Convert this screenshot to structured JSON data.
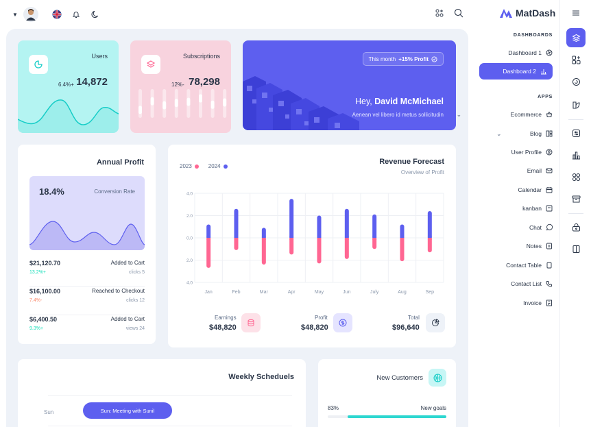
{
  "header": {
    "flag": "uk-flag-icon",
    "icons": [
      "bell-icon",
      "moon-icon",
      "apps-icon",
      "search-icon"
    ]
  },
  "cards": {
    "users": {
      "label": "Users",
      "change": "6.4%+",
      "value": "14,872"
    },
    "subscriptions": {
      "label": "Subscriptions",
      "change": "12%-",
      "value": "78,298",
      "bar_levels": [
        0.42,
        0.72,
        0.58,
        0.66,
        0.7,
        0.82,
        0.6,
        0.68
      ]
    }
  },
  "hero": {
    "badge_prefix": "This month",
    "badge_value": "+15% Profit",
    "greeting": "Hey,",
    "name": "David McMichael",
    "subtitle": "Aenean vel libero id metus sollicitudin"
  },
  "annual_profit": {
    "title": "Annual Profit",
    "conversion_pct": "18.4%",
    "conversion_label": "Conversion Rate",
    "rows": [
      {
        "amount": "$21,120.70",
        "change": "13.2%+",
        "change_color": "#13deb9",
        "action": "Added to Cart",
        "meta": "clicks 5"
      },
      {
        "amount": "$16,100.00",
        "change": "7.4%-",
        "change_color": "#fa896b",
        "action": "Reached to Checkout",
        "meta": "clicks 12"
      },
      {
        "amount": "$6,400.50",
        "change": "9.3%+",
        "change_color": "#13deb9",
        "action": "Added to Cart",
        "meta": "views 24"
      }
    ]
  },
  "revenue": {
    "title": "Revenue Forecast",
    "subtitle": "Overview of Profit",
    "legend": [
      {
        "label": "2023",
        "color": "#ff6692"
      },
      {
        "label": "2024",
        "color": "#5d5fef"
      }
    ],
    "kpis": [
      {
        "label": "Earnings",
        "value": "$48,820",
        "icon": "database-icon",
        "bg": "#fde1e8",
        "fg": "#ff6692"
      },
      {
        "label": "Profit",
        "value": "$48,820",
        "icon": "dollar-icon",
        "bg": "#e5e4ff",
        "fg": "#5d5fef"
      },
      {
        "label": "Total",
        "value": "$96,640",
        "icon": "pie-icon",
        "bg": "#eef2f8",
        "fg": "#2a3547"
      }
    ]
  },
  "chart_data": {
    "type": "bar",
    "categories": [
      "Jan",
      "Feb",
      "Mar",
      "Apr",
      "May",
      "Jun",
      "July",
      "Aug",
      "Sep"
    ],
    "y_ticks": [
      "4.0",
      "2.0",
      "0.0",
      "2.0",
      "4.0"
    ],
    "ylim": [
      -4,
      4
    ],
    "grid": true,
    "legend_position": "top-left",
    "series": [
      {
        "name": "2023",
        "color": "#ff6692",
        "values": [
          -2.7,
          -1.1,
          -2.4,
          -1.5,
          -2.3,
          -1.9,
          -1.0,
          -2.1,
          -1.3
        ]
      },
      {
        "name": "2024",
        "color": "#5d5fef",
        "values": [
          1.2,
          2.6,
          0.9,
          3.5,
          2.0,
          2.6,
          2.1,
          1.2,
          2.4
        ]
      }
    ]
  },
  "weekly": {
    "title": "Weekly Scheduels",
    "day": "Sun",
    "event": "Sun: Meeting with Sunil"
  },
  "new_customers": {
    "title": "New Customers",
    "pct": "83%",
    "goal_label": "New goals",
    "progress": 0.83
  },
  "sidebar": {
    "brand": "MatDash",
    "dashboards_title": "DASHBOARDS",
    "dashboards": [
      {
        "label": "Dashboard 1",
        "icon": "aperture-icon"
      },
      {
        "label": "Dashboard 2",
        "icon": "chart-icon"
      }
    ],
    "apps_title": "APPS",
    "apps": [
      {
        "label": "Ecommerce",
        "icon": "basket-icon",
        "chevron": true
      },
      {
        "label": "Blog",
        "icon": "layout-icon",
        "chevron": true
      },
      {
        "label": "User Profile",
        "icon": "user-circle-icon"
      },
      {
        "label": "Email",
        "icon": "mail-icon"
      },
      {
        "label": "Calendar",
        "icon": "calendar-icon"
      },
      {
        "label": "kanban",
        "icon": "kanban-icon"
      },
      {
        "label": "Chat",
        "icon": "message-icon"
      },
      {
        "label": "Notes",
        "icon": "notes-icon"
      },
      {
        "label": "Contact Table",
        "icon": "phone-book-icon"
      },
      {
        "label": "Contact List",
        "icon": "phone-icon"
      },
      {
        "label": "Invoice",
        "icon": "invoice-icon"
      }
    ]
  },
  "rail": [
    "menu-icon",
    "layers-icon",
    "apps-add-icon",
    "copy-icon",
    "leaf-icon",
    "sliders-icon",
    "chart-bar-icon",
    "grid-icon",
    "archive-icon",
    "lock-icon",
    "columns-icon"
  ]
}
